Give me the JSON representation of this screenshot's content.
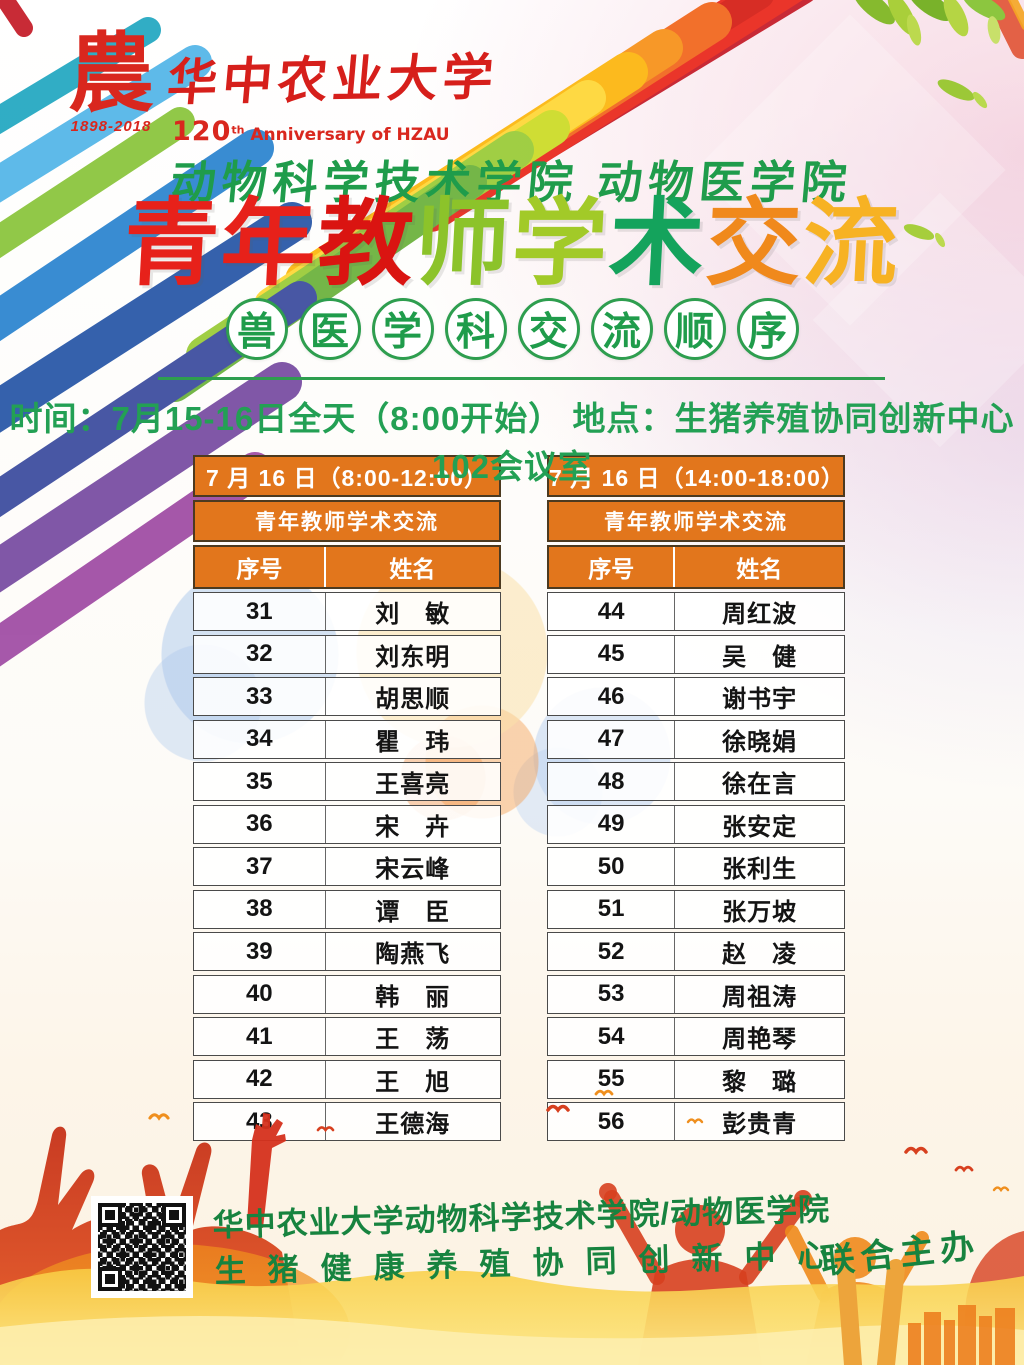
{
  "logo": {
    "emblem": "農",
    "years": "1898-2018",
    "university": "华中农业大学",
    "anniversary_number": "120",
    "anniversary_suffix": "th",
    "anniversary_text": "Anniversary of HZAU"
  },
  "header": {
    "colleges": "动物科学技术学院 动物医学院",
    "title_chars": [
      {
        "t": "青",
        "c": "#e7211a"
      },
      {
        "t": "年",
        "c": "#e7211a"
      },
      {
        "t": "教",
        "c": "#da1411"
      },
      {
        "t": "师",
        "c": "#8cc32a"
      },
      {
        "t": "学",
        "c": "#a2ca28"
      },
      {
        "t": "术",
        "c": "#14a35c"
      },
      {
        "t": "交",
        "c": "#f0891c"
      },
      {
        "t": "流",
        "c": "#f7b223"
      }
    ],
    "subtitle_chars": [
      "兽",
      "医",
      "学",
      "科",
      "交",
      "流",
      "顺",
      "序"
    ],
    "info": "时间：7月15-16日全天（8:00开始）  地点：生猪养殖协同创新中心102会议室"
  },
  "tables": [
    {
      "session": "7 月 16 日（8:00-12:00）",
      "event": "青年教师学术交流",
      "columns": [
        "序号",
        "姓名"
      ],
      "rows": [
        [
          "31",
          "刘　敏"
        ],
        [
          "32",
          "刘东明"
        ],
        [
          "33",
          "胡思顺"
        ],
        [
          "34",
          "瞿　玮"
        ],
        [
          "35",
          "王喜亮"
        ],
        [
          "36",
          "宋　卉"
        ],
        [
          "37",
          "宋云峰"
        ],
        [
          "38",
          "谭　臣"
        ],
        [
          "39",
          "陶燕飞"
        ],
        [
          "40",
          "韩　丽"
        ],
        [
          "41",
          "王　荡"
        ],
        [
          "42",
          "王　旭"
        ],
        [
          "43",
          "王德海"
        ]
      ]
    },
    {
      "session": "7 月 16 日（14:00-18:00）",
      "event": "青年教师学术交流",
      "columns": [
        "序号",
        "姓名"
      ],
      "rows": [
        [
          "44",
          "周红波"
        ],
        [
          "45",
          "吴　健"
        ],
        [
          "46",
          "谢书宇"
        ],
        [
          "47",
          "徐晓娟"
        ],
        [
          "48",
          "徐在言"
        ],
        [
          "49",
          "张安定"
        ],
        [
          "50",
          "张利生"
        ],
        [
          "51",
          "张万坡"
        ],
        [
          "52",
          "赵　凌"
        ],
        [
          "53",
          "周祖涛"
        ],
        [
          "54",
          "周艳琴"
        ],
        [
          "55",
          "黎　璐"
        ],
        [
          "56",
          "彭贵青"
        ]
      ]
    }
  ],
  "footer": {
    "line1": "华中农业大学动物科学技术学院/动物医学院",
    "line2": "生猪健康养殖协同创新中心",
    "cohost": "联合主办"
  },
  "colors": {
    "green_text": "#1f9c4b",
    "table_header_orange": "#e2761c",
    "title_red": "#e7211a"
  }
}
